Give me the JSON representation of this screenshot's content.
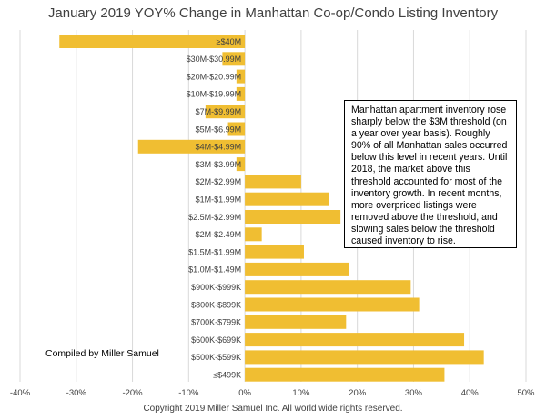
{
  "chart_data": {
    "type": "bar",
    "orientation": "horizontal",
    "title": "January 2019 YOY% Change in Manhattan Co-op/Condo Listing Inventory",
    "categories": [
      "≥$40M",
      "$30M-$30.99M",
      "$20M-$20.99M",
      "$10M-$19.99M",
      "$7M-$9.99M",
      "$5M-$6.99M",
      "$4M-$4.99M",
      "$3M-$3.99M",
      "$2M-$2.99M",
      "$1M-$1.99M",
      "$2.5M-$2.99M",
      "$2M-$2.49M",
      "$1.5M-$1.99M",
      "$1.0M-$1.49M",
      "$900K-$999K",
      "$800K-$899K",
      "$700K-$799K",
      "$600K-$699K",
      "$500K-$599K",
      "≤$499K"
    ],
    "values": [
      -33,
      -4,
      -1.5,
      -1.5,
      -7,
      -3,
      -19,
      -1.5,
      10,
      15,
      17,
      3,
      10.5,
      18.5,
      29.5,
      31,
      18,
      39,
      42.5,
      35.5
    ],
    "xlim": [
      -40,
      50
    ],
    "xticks": [
      "-40%",
      "-30%",
      "-20%",
      "-10%",
      "0%",
      "10%",
      "20%",
      "30%",
      "40%",
      "50%"
    ],
    "xtick_values": [
      -40,
      -30,
      -20,
      -10,
      0,
      10,
      20,
      30,
      40,
      50
    ],
    "grid": true,
    "bar_color": "#F0BE32",
    "grid_color": "#D9D9D9"
  },
  "annotation": "Manhattan apartment inventory rose sharply below the $3M threshold (on a year over year basis).  Roughly 90% of all Manhattan sales occurred below this level in recent years.  Until 2018, the market above this threshold accounted for most of the inventory growth.  In recent months, more overpriced listings were removed above the threshold, and slowing sales below the threshold caused inventory to rise.",
  "credit": "Compiled by Miller Samuel",
  "copyright": "Copyright 2019 Miller Samuel Inc.  All world wide rights reserved."
}
